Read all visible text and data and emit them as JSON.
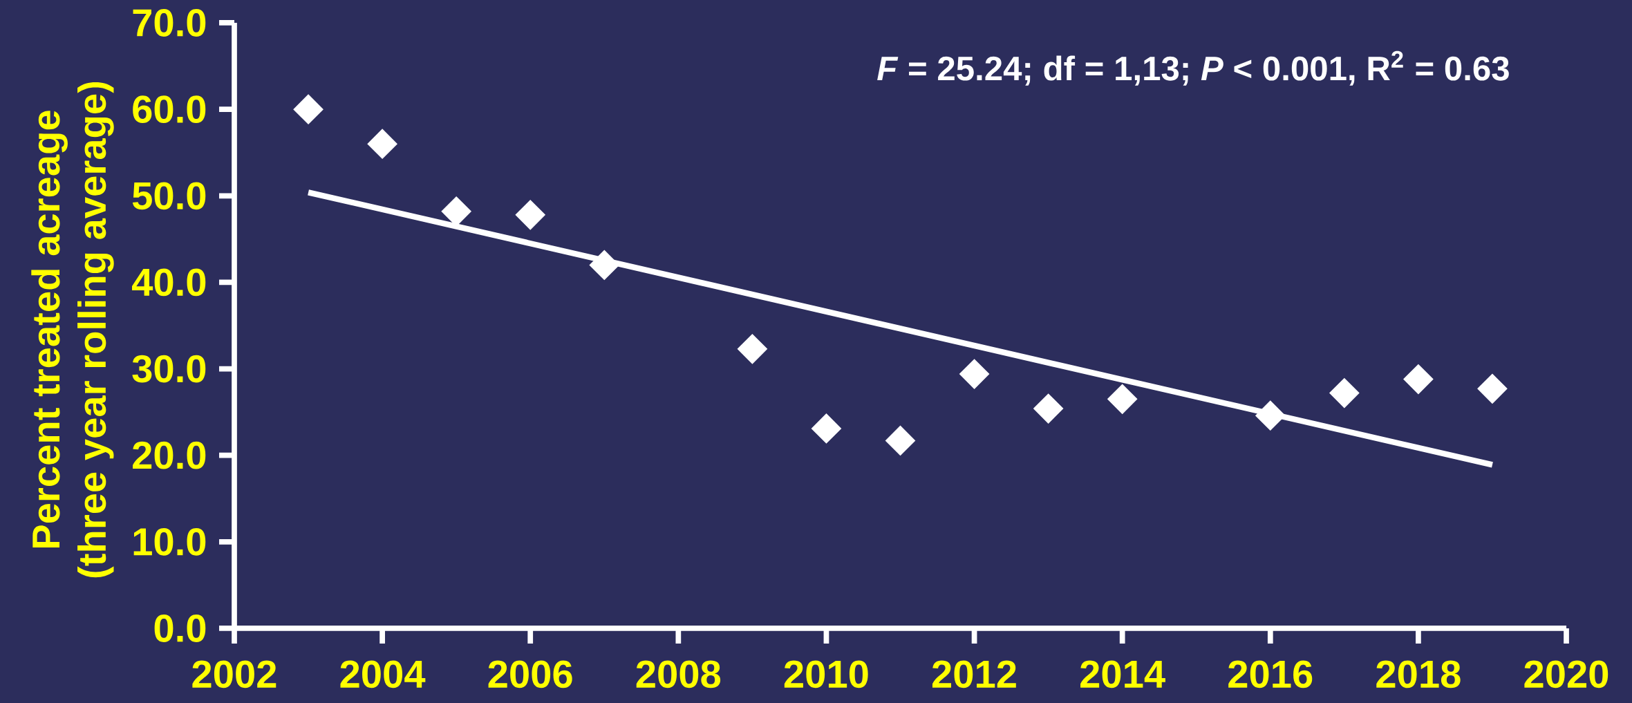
{
  "chart_data": {
    "type": "scatter",
    "ylabel": "Percent treated acreage\n(three year rolling average)",
    "x": [
      2003,
      2004,
      2005,
      2006,
      2007,
      2009,
      2010,
      2011,
      2012,
      2013,
      2014,
      2016,
      2017,
      2018,
      2019
    ],
    "series": [
      {
        "color": "#ffffff",
        "marker": "diamond",
        "values": [
          60.0,
          56.0,
          48.2,
          47.8,
          42.0,
          32.3,
          23.1,
          21.7,
          29.4,
          25.4,
          26.5,
          24.6,
          27.2,
          28.8,
          27.7
        ]
      },
      {
        "type": "line",
        "color": "#ffffff",
        "marker": "none",
        "line_style": "solid",
        "x": [
          2003,
          2019
        ],
        "values": [
          50.4,
          18.9
        ]
      }
    ],
    "xlim": [
      2002,
      2020
    ],
    "ylim": [
      0,
      70
    ],
    "xticks": [
      2002,
      2004,
      2006,
      2008,
      2010,
      2012,
      2014,
      2016,
      2018,
      2020
    ],
    "yticks": [
      {
        "value": 0,
        "label": "0.0"
      },
      {
        "value": 10,
        "label": "10.0"
      },
      {
        "value": 20,
        "label": "20.0"
      },
      {
        "value": 30,
        "label": "30.0"
      },
      {
        "value": 40,
        "label": "40.0"
      },
      {
        "value": 50,
        "label": "50.0"
      },
      {
        "value": 60,
        "label": "60.0"
      },
      {
        "value": 70,
        "label": "70.0"
      }
    ],
    "annotations": [
      "*F* = 25.24; df = 1,13; *P* < 0.001, R$^{2}$ = 0.63"
    ],
    "grid": false
  }
}
